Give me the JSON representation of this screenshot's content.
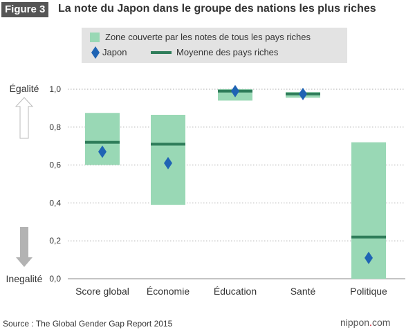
{
  "figure": {
    "label": "Figure 3",
    "title": "La note du Japon dans le groupe des nations les plus riches"
  },
  "legend": {
    "range_label": "Zone couverte par les notes de tous les pays riches",
    "japan_label": "Japon",
    "average_label": "Moyenne des pays riches"
  },
  "axis_labels": {
    "top": "Égalité",
    "bottom": "Inegalité"
  },
  "source": "Source : The Global Gender Gap Report 2015",
  "brand": {
    "prefix": "nippon",
    "dot": ".",
    "suffix": "com"
  },
  "colors": {
    "range": "#99d8b5",
    "average": "#2f7d5a",
    "japan": "#1f64b4",
    "grid": "#a8a8a8",
    "text": "#333333"
  },
  "chart_data": {
    "type": "bar",
    "title": "La note du Japon dans le groupe des nations les plus riches",
    "categories": [
      "Score global",
      "Économie",
      "Éducation",
      "Santé",
      "Politique"
    ],
    "ylim": [
      0,
      1.0
    ],
    "yticks": [
      "0,0",
      "0,2",
      "0,4",
      "0,6",
      "0,8",
      "1,0"
    ],
    "ytick_values": [
      0,
      0.2,
      0.4,
      0.6,
      0.8,
      1.0
    ],
    "grid": true,
    "series": [
      {
        "name": "Zone couverte par les notes de tous les pays riches",
        "kind": "range",
        "low": [
          0.6,
          0.39,
          0.94,
          0.955,
          0.0
        ],
        "high": [
          0.875,
          0.865,
          1.0,
          0.985,
          0.72
        ]
      },
      {
        "name": "Moyenne des pays riches",
        "kind": "line-marker",
        "values": [
          0.72,
          0.71,
          0.99,
          0.975,
          0.22
        ]
      },
      {
        "name": "Japon",
        "kind": "diamond",
        "values": [
          0.67,
          0.61,
          0.99,
          0.975,
          0.11
        ]
      }
    ]
  }
}
